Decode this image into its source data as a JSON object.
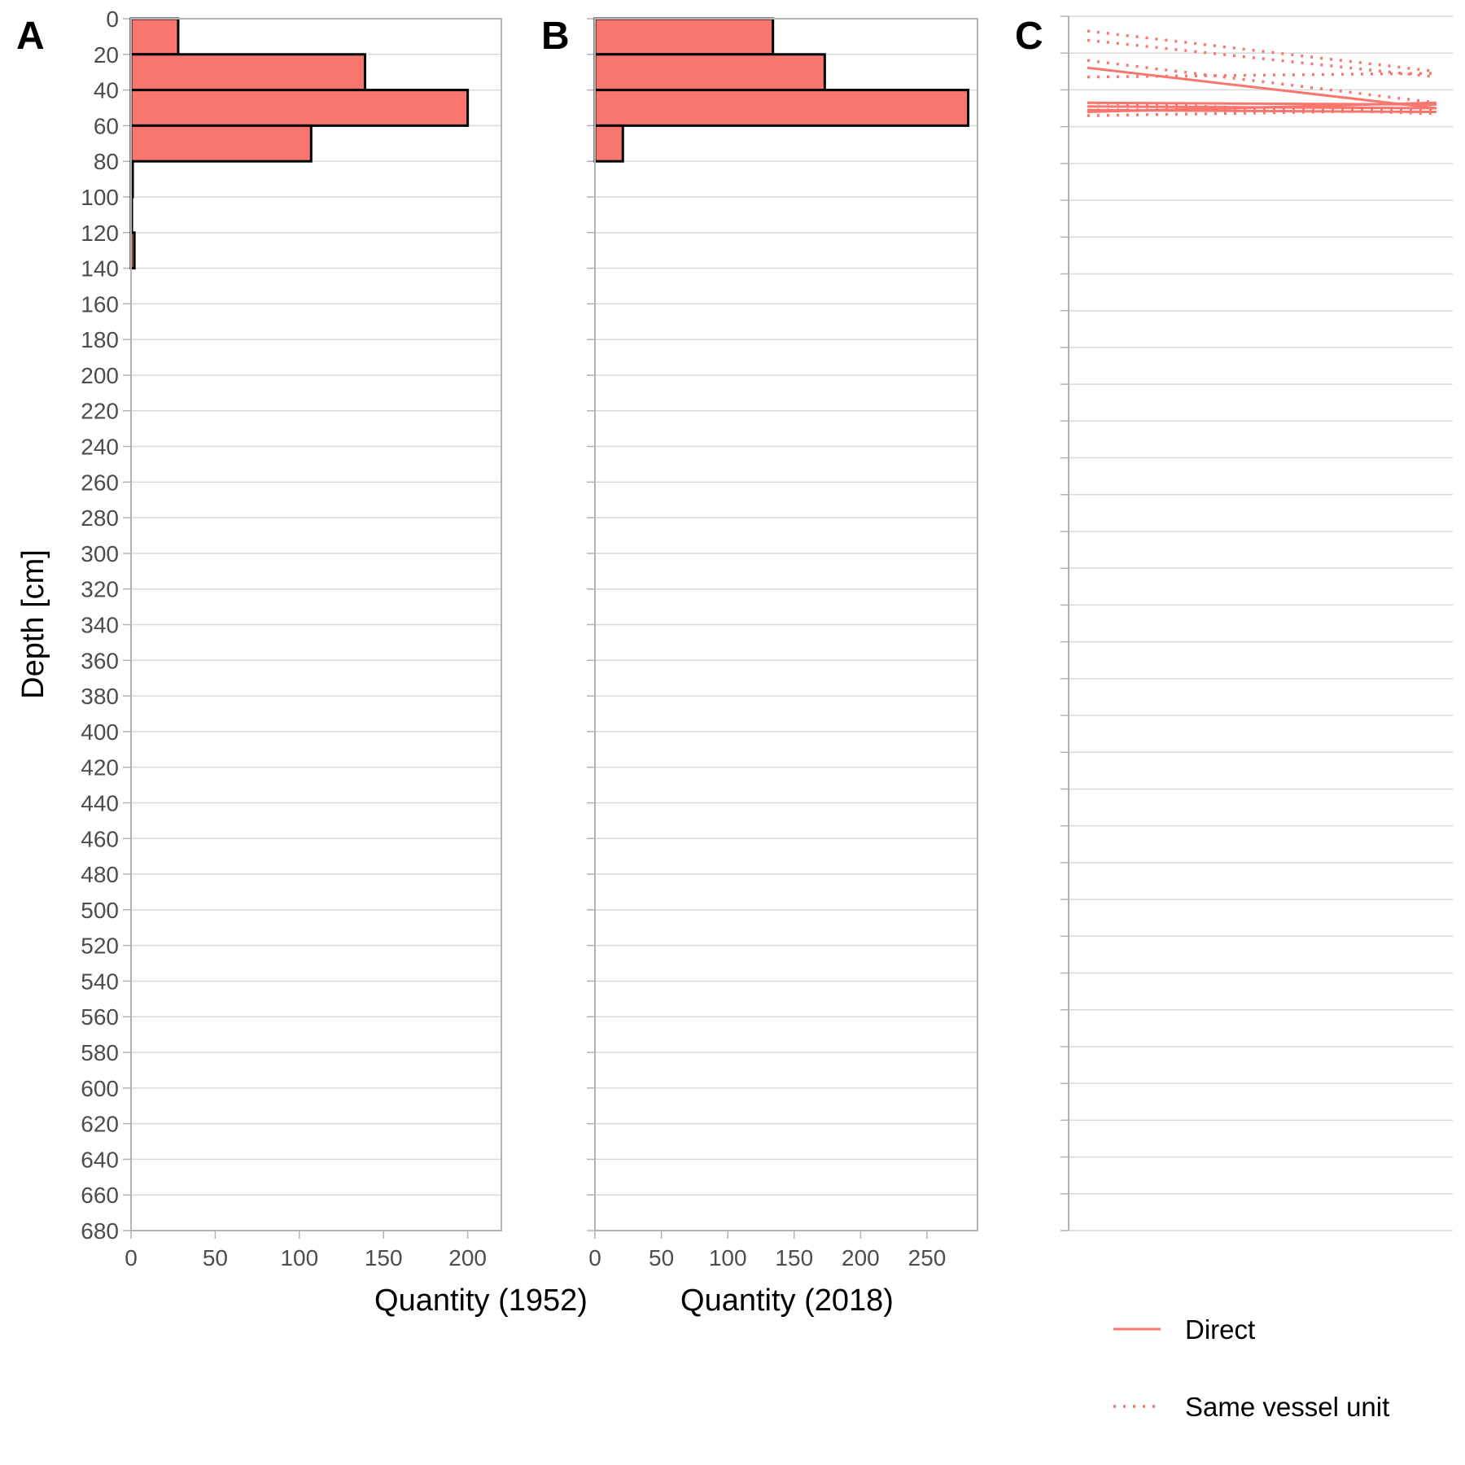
{
  "chart_data": [
    {
      "panel": "A",
      "type": "bar",
      "orientation": "horizontal",
      "title": "",
      "xlabel": "Quantity (1952)",
      "ylabel": "Depth [cm]",
      "xlim": [
        0,
        220
      ],
      "ylim": [
        680,
        0
      ],
      "xticks": [
        0,
        50,
        100,
        150,
        200
      ],
      "yticks": [
        0,
        20,
        40,
        60,
        80,
        100,
        120,
        140,
        160,
        180,
        200,
        220,
        240,
        260,
        280,
        300,
        320,
        340,
        360,
        380,
        400,
        420,
        440,
        460,
        480,
        500,
        520,
        540,
        560,
        580,
        600,
        620,
        640,
        660,
        680
      ],
      "grid": true,
      "bar_color": "#F8766D",
      "bars": [
        {
          "depth_from": 0,
          "depth_to": 20,
          "value": 28
        },
        {
          "depth_from": 20,
          "depth_to": 40,
          "value": 139
        },
        {
          "depth_from": 40,
          "depth_to": 60,
          "value": 200
        },
        {
          "depth_from": 60,
          "depth_to": 80,
          "value": 107
        },
        {
          "depth_from": 80,
          "depth_to": 100,
          "value": 1
        },
        {
          "depth_from": 100,
          "depth_to": 120,
          "value": 0.5
        },
        {
          "depth_from": 120,
          "depth_to": 140,
          "value": 2
        }
      ]
    },
    {
      "panel": "B",
      "type": "bar",
      "orientation": "horizontal",
      "title": "",
      "xlabel": "Quantity (2018)",
      "ylabel": "",
      "xlim": [
        0,
        288
      ],
      "ylim": [
        660,
        0
      ],
      "xticks": [
        0,
        50,
        100,
        150,
        200,
        250
      ],
      "grid": true,
      "bar_color": "#F8766D",
      "bars": [
        {
          "depth_from": 0,
          "depth_to": 20,
          "value": 134
        },
        {
          "depth_from": 20,
          "depth_to": 40,
          "value": 173
        },
        {
          "depth_from": 40,
          "depth_to": 60,
          "value": 281
        },
        {
          "depth_from": 60,
          "depth_to": 80,
          "value": 21
        }
      ]
    },
    {
      "panel": "C",
      "type": "line",
      "title": "",
      "xlabel": "",
      "ylabel": "",
      "ylim": [
        660,
        0
      ],
      "grid": true,
      "legend_placement": "bottom",
      "legend": [
        {
          "name": "Direct",
          "style": "solid",
          "color": "#F8766D"
        },
        {
          "name": "Same vessel unit",
          "style": "dotted",
          "color": "#F8766D"
        }
      ],
      "series": [
        {
          "style": "solid",
          "points": [
            [
              0,
              28
            ],
            [
              1,
              50
            ]
          ]
        },
        {
          "style": "solid",
          "points": [
            [
              0,
              47
            ],
            [
              1,
              48
            ]
          ]
        },
        {
          "style": "solid",
          "points": [
            [
              0,
              49
            ],
            [
              1,
              50
            ]
          ]
        },
        {
          "style": "solid",
          "points": [
            [
              0,
              51
            ],
            [
              1,
              52
            ]
          ]
        },
        {
          "style": "solid",
          "points": [
            [
              0,
              52
            ],
            [
              1,
              47
            ]
          ]
        },
        {
          "style": "dotted",
          "points": [
            [
              0,
              8
            ],
            [
              1,
              30
            ]
          ]
        },
        {
          "style": "dotted",
          "points": [
            [
              0,
              13
            ],
            [
              1,
              33
            ]
          ]
        },
        {
          "style": "dotted",
          "points": [
            [
              0,
              24
            ],
            [
              1,
              47
            ]
          ]
        },
        {
          "style": "dotted",
          "points": [
            [
              0,
              33
            ],
            [
              1,
              31
            ]
          ]
        },
        {
          "style": "dotted",
          "points": [
            [
              0,
              47
            ],
            [
              1,
              53
            ]
          ]
        },
        {
          "style": "dotted",
          "points": [
            [
              0,
              51
            ],
            [
              1,
              50
            ]
          ]
        },
        {
          "style": "dotted",
          "points": [
            [
              0,
              54
            ],
            [
              1,
              51
            ]
          ]
        }
      ]
    }
  ],
  "panel_labels": [
    "A",
    "B",
    "C"
  ]
}
